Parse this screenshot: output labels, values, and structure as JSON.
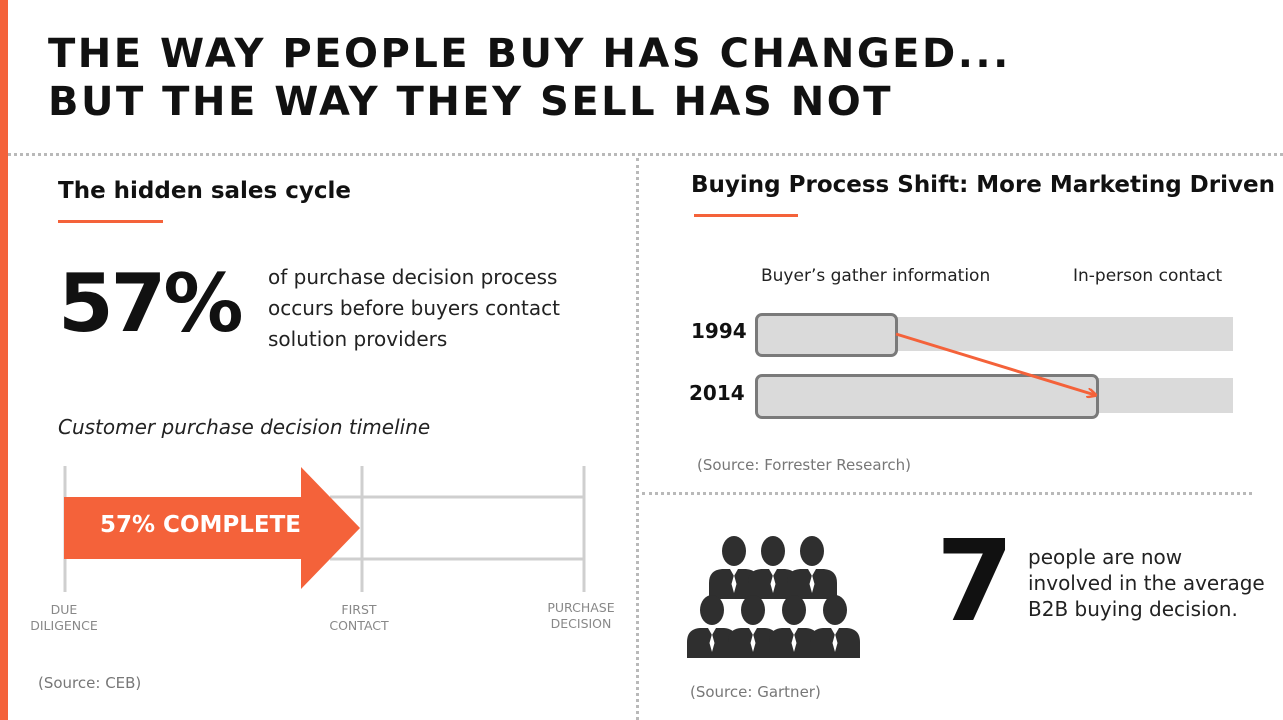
{
  "header": {
    "title_line1": "THE WAY PEOPLE BUY HAS CHANGED...",
    "title_line2": "BUT THE WAY THEY SELL HAS NOT",
    "accent_color": "#f4623a"
  },
  "left_panel": {
    "heading": "The hidden sales cycle",
    "stat_value": "57%",
    "stat_text": "of purchase decision process occurs before buyers contact solution providers",
    "timeline": {
      "title": "Customer purchase decision timeline",
      "progress_label": "57% COMPLETE",
      "progress_percent": 57,
      "stages": [
        {
          "label_line1": "DUE",
          "label_line2": "DILIGENCE"
        },
        {
          "label_line1": "FIRST",
          "label_line2": "CONTACT"
        },
        {
          "label_line1": "PURCHASE",
          "label_line2": "DECISION"
        }
      ]
    },
    "source": "(Source: CEB)"
  },
  "right_top_panel": {
    "heading": "Buying Process Shift: More Marketing Driven",
    "column_labels": {
      "left": "Buyer’s gather information",
      "right": "In-person contact"
    },
    "rows": [
      {
        "year": "1994",
        "info_fraction": 0.3
      },
      {
        "year": "2014",
        "info_fraction": 0.72
      }
    ],
    "source": "(Source: Forrester Research)"
  },
  "right_bottom_panel": {
    "icon": "group-of-people-icon",
    "stat_value": "7",
    "stat_text": "people are now involved in the average B2B buying decision.",
    "source": "(Source: Gartner)"
  }
}
